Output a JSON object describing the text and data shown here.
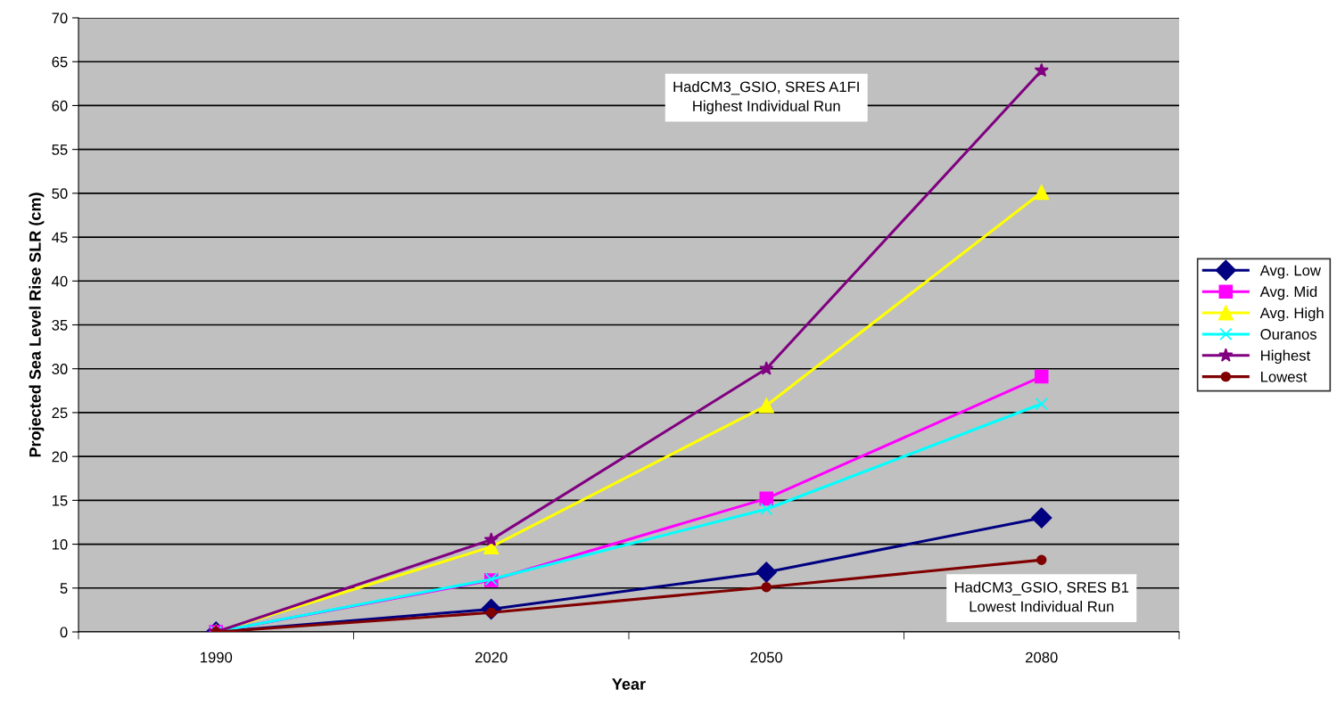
{
  "chart_data": {
    "type": "line",
    "xlabel": "Year",
    "ylabel": "Projected Sea Level Rise SLR (cm)",
    "categories": [
      "1990",
      "2020",
      "2050",
      "2080"
    ],
    "series": [
      {
        "name": "Avg. Low",
        "color": "#000080",
        "marker": "diamond",
        "values": [
          0,
          2.6,
          6.8,
          13
        ]
      },
      {
        "name": "Avg. Mid",
        "color": "#ff00ff",
        "marker": "square",
        "values": [
          0,
          5.9,
          15.2,
          29.1
        ]
      },
      {
        "name": "Avg. High",
        "color": "#ffff00",
        "marker": "triangle",
        "values": [
          0,
          9.7,
          25.8,
          50.1
        ]
      },
      {
        "name": "Ouranos",
        "color": "#00ffff",
        "marker": "cross",
        "values": [
          0,
          6,
          14,
          26
        ]
      },
      {
        "name": "Highest",
        "color": "#800080",
        "marker": "star",
        "values": [
          0,
          10.5,
          30,
          64
        ]
      },
      {
        "name": "Lowest",
        "color": "#800000",
        "marker": "circle",
        "values": [
          0,
          2.2,
          5.1,
          8.2
        ]
      }
    ],
    "ylim": [
      0,
      70
    ],
    "yticks": [
      0,
      5,
      10,
      15,
      20,
      25,
      30,
      35,
      40,
      45,
      50,
      55,
      60,
      65,
      70
    ],
    "grid": "y",
    "legend": "right",
    "annotations": [
      "HadCM3_GSIO, SRES A1FI\nHighest Individual Run",
      "HadCM3_GSIO, SRES B1\nLowest Individual Run"
    ]
  }
}
